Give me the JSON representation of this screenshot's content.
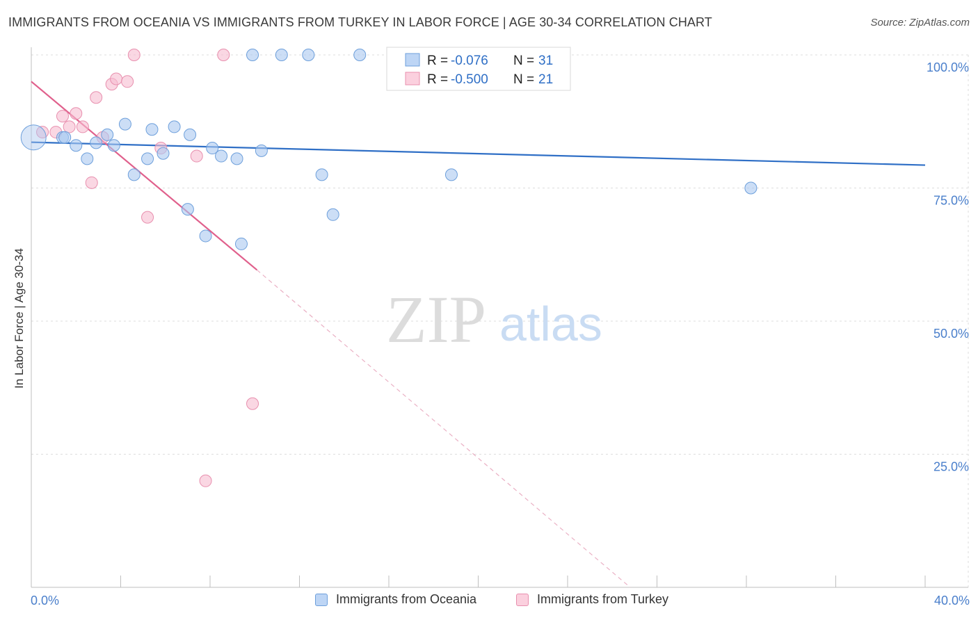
{
  "title": "IMMIGRANTS FROM OCEANIA VS IMMIGRANTS FROM TURKEY IN LABOR FORCE | AGE 30-34 CORRELATION CHART",
  "source": "Source: ZipAtlas.com",
  "watermark": {
    "zip": "ZIP",
    "atlas": "atlas"
  },
  "chart_data": {
    "type": "scatter",
    "title": "IMMIGRANTS FROM OCEANIA VS IMMIGRANTS FROM TURKEY IN LABOR FORCE | AGE 30-34 CORRELATION CHART",
    "xlabel": "",
    "ylabel": "In Labor Force | Age 30-34",
    "xlim": [
      0,
      40
    ],
    "ylim": [
      0,
      100
    ],
    "x_tick_labels": [
      "0.0%",
      "40.0%"
    ],
    "y_ticks": [
      25,
      50,
      75,
      100
    ],
    "y_tick_labels": [
      "25.0%",
      "50.0%",
      "75.0%",
      "100.0%"
    ],
    "grid": true,
    "legend": {
      "placement": "top-center",
      "r_label": "R =",
      "n_label": "N =",
      "entries": [
        {
          "series": "Immigrants from Oceania",
          "r": "-0.076",
          "n": "31"
        },
        {
          "series": "Immigrants from Turkey",
          "r": "-0.500",
          "n": "21"
        }
      ]
    },
    "series": [
      {
        "name": "Immigrants from Oceania",
        "color": "#aac8f0",
        "stroke": "#6d9fdb",
        "line_color": "#2f6fc6",
        "trend": {
          "x": [
            0,
            40
          ],
          "y": [
            83.6,
            79.3
          ],
          "dashed_extension": false
        },
        "points": [
          {
            "x": 0.1,
            "y": 84.5,
            "big": true
          },
          {
            "x": 1.4,
            "y": 84.5
          },
          {
            "x": 1.5,
            "y": 84.5
          },
          {
            "x": 2.0,
            "y": 83.0
          },
          {
            "x": 2.5,
            "y": 80.5
          },
          {
            "x": 2.9,
            "y": 83.5
          },
          {
            "x": 3.4,
            "y": 85.0
          },
          {
            "x": 3.7,
            "y": 83.0
          },
          {
            "x": 4.2,
            "y": 87.0
          },
          {
            "x": 4.6,
            "y": 77.5
          },
          {
            "x": 5.2,
            "y": 80.5
          },
          {
            "x": 5.4,
            "y": 86.0
          },
          {
            "x": 5.9,
            "y": 81.5
          },
          {
            "x": 6.4,
            "y": 86.5
          },
          {
            "x": 7.0,
            "y": 71.0
          },
          {
            "x": 7.1,
            "y": 85.0
          },
          {
            "x": 7.8,
            "y": 66.0
          },
          {
            "x": 8.1,
            "y": 82.5
          },
          {
            "x": 8.5,
            "y": 81.0
          },
          {
            "x": 9.2,
            "y": 80.5
          },
          {
            "x": 9.4,
            "y": 64.5
          },
          {
            "x": 9.9,
            "y": 100.0
          },
          {
            "x": 10.3,
            "y": 82.0
          },
          {
            "x": 11.2,
            "y": 100.0
          },
          {
            "x": 12.4,
            "y": 100.0
          },
          {
            "x": 13.0,
            "y": 77.5
          },
          {
            "x": 13.5,
            "y": 70.0
          },
          {
            "x": 14.7,
            "y": 100.0
          },
          {
            "x": 18.8,
            "y": 77.5
          },
          {
            "x": 32.2,
            "y": 75.0
          }
        ]
      },
      {
        "name": "Immigrants from Turkey",
        "color": "#f7bcd0",
        "stroke": "#e88fae",
        "line_color": "#e0608c",
        "trend": {
          "x": [
            0,
            10.1
          ],
          "y": [
            95,
            59.6
          ],
          "dashed_to": {
            "x": 26.8,
            "y": 0
          }
        },
        "points": [
          {
            "x": 0.5,
            "y": 85.5
          },
          {
            "x": 1.1,
            "y": 85.5
          },
          {
            "x": 1.4,
            "y": 88.5
          },
          {
            "x": 1.7,
            "y": 86.5
          },
          {
            "x": 2.0,
            "y": 89.0
          },
          {
            "x": 2.3,
            "y": 86.5
          },
          {
            "x": 2.7,
            "y": 76.0
          },
          {
            "x": 2.9,
            "y": 92.0
          },
          {
            "x": 3.2,
            "y": 84.5
          },
          {
            "x": 3.6,
            "y": 94.5
          },
          {
            "x": 3.8,
            "y": 95.5
          },
          {
            "x": 4.3,
            "y": 95.0
          },
          {
            "x": 4.6,
            "y": 100.0
          },
          {
            "x": 5.2,
            "y": 69.5
          },
          {
            "x": 5.8,
            "y": 82.5
          },
          {
            "x": 7.4,
            "y": 81.0
          },
          {
            "x": 7.8,
            "y": 20.0
          },
          {
            "x": 8.6,
            "y": 100.0
          },
          {
            "x": 9.9,
            "y": 34.5
          }
        ]
      }
    ]
  }
}
